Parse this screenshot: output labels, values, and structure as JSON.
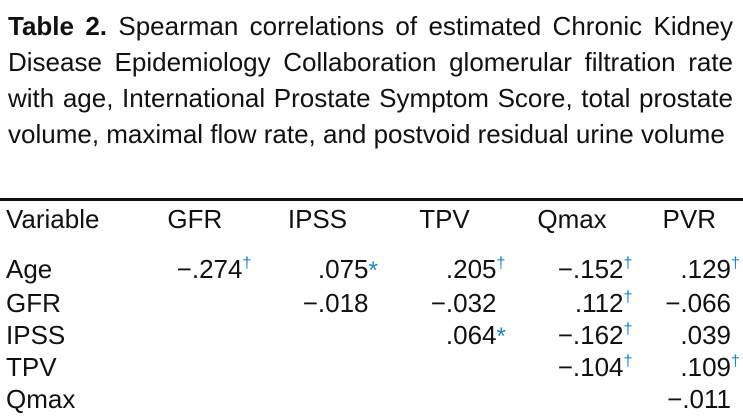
{
  "caption": {
    "label": "Table 2.",
    "text": "Spearman correlations of estimated Chronic Kidney Disease Epidemiology Collaboration glomerular filtration rate with age, International Prostate Symptom Score, total prostate volume, maximal flow rate, and postvoid residual urine volume"
  },
  "columns": [
    "Variable",
    "GFR",
    "IPSS",
    "TPV",
    "Qmax",
    "PVR"
  ],
  "rows": [
    {
      "variable": "Age",
      "cells": [
        {
          "value": "−.274",
          "mark": "†"
        },
        {
          "value": ".075",
          "mark": "*"
        },
        {
          "value": ".205",
          "mark": "†"
        },
        {
          "value": "−.152",
          "mark": "†"
        },
        {
          "value": ".129",
          "mark": "†"
        }
      ]
    },
    {
      "variable": "GFR",
      "cells": [
        {
          "value": "",
          "mark": ""
        },
        {
          "value": "−.018",
          "mark": ""
        },
        {
          "value": "−.032",
          "mark": ""
        },
        {
          "value": ".112",
          "mark": "†"
        },
        {
          "value": "−.066",
          "mark": ""
        }
      ]
    },
    {
      "variable": "IPSS",
      "cells": [
        {
          "value": "",
          "mark": ""
        },
        {
          "value": "",
          "mark": ""
        },
        {
          "value": ".064",
          "mark": "*"
        },
        {
          "value": "−.162",
          "mark": "†"
        },
        {
          "value": ".039",
          "mark": ""
        }
      ]
    },
    {
      "variable": "TPV",
      "cells": [
        {
          "value": "",
          "mark": ""
        },
        {
          "value": "",
          "mark": ""
        },
        {
          "value": "",
          "mark": ""
        },
        {
          "value": "−.104",
          "mark": "†"
        },
        {
          "value": ".109",
          "mark": "†"
        }
      ]
    },
    {
      "variable": "Qmax",
      "cells": [
        {
          "value": "",
          "mark": ""
        },
        {
          "value": "",
          "mark": ""
        },
        {
          "value": "",
          "mark": ""
        },
        {
          "value": "",
          "mark": ""
        },
        {
          "value": "−.011",
          "mark": ""
        }
      ]
    }
  ]
}
